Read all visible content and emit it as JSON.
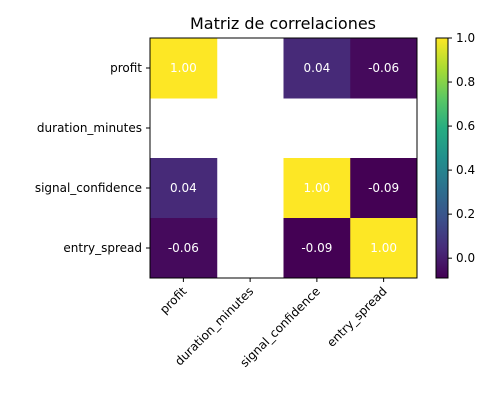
{
  "chart_data": {
    "type": "heatmap",
    "title": "Matriz de correlaciones",
    "rows": [
      "profit",
      "duration_minutes",
      "signal_confidence",
      "entry_spread"
    ],
    "columns": [
      "profit",
      "duration_minutes",
      "signal_confidence",
      "entry_spread"
    ],
    "values": [
      [
        1.0,
        null,
        0.04,
        -0.06
      ],
      [
        null,
        null,
        null,
        null
      ],
      [
        0.04,
        null,
        1.0,
        -0.09
      ],
      [
        -0.06,
        null,
        -0.09,
        1.0
      ]
    ],
    "cell_labels": [
      [
        "1.00",
        "",
        "0.04",
        "-0.06"
      ],
      [
        "",
        "",
        "",
        ""
      ],
      [
        "0.04",
        "",
        "1.00",
        "-0.09"
      ],
      [
        "-0.06",
        "",
        "-0.09",
        "1.00"
      ]
    ],
    "colorbar": {
      "range": [
        -0.09,
        1.0
      ],
      "ticks": [
        "0.0",
        "0.2",
        "0.4",
        "0.6",
        "0.8",
        "1.0"
      ],
      "tick_values": [
        0.0,
        0.2,
        0.4,
        0.6,
        0.8,
        1.0
      ],
      "colormap": "viridis"
    },
    "grid": false
  }
}
